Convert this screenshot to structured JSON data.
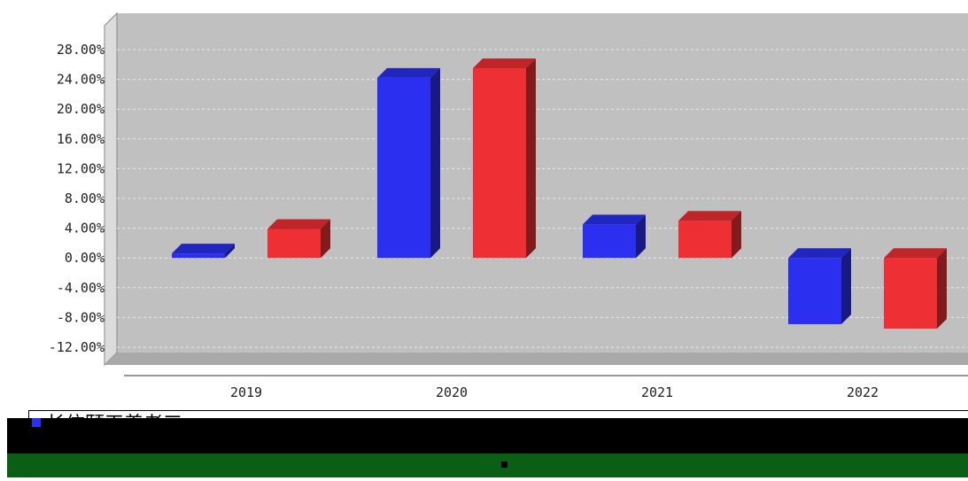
{
  "chart_data": {
    "type": "bar",
    "categories": [
      "2019",
      "2020",
      "2021",
      "2022"
    ],
    "series": [
      {
        "name": "长信颐天养老三",
        "color": "#2b2ff0",
        "values": [
          0.6,
          24.2,
          4.5,
          -8.9
        ]
      },
      {
        "values": [
          3.9,
          25.5,
          5.0,
          -9.5
        ],
        "color": "#ee2f33"
      }
    ],
    "y_ticks": [
      "28.00%",
      "24.00%",
      "20.00%",
      "16.00%",
      "12.00%",
      "8.00%",
      "4.00%",
      "0.00%",
      "-4.00%",
      "-8.00%",
      "-12.00%"
    ],
    "ylim": [
      -12,
      28
    ],
    "grid": true,
    "legend_position": "bottom",
    "title": "",
    "xlabel": "",
    "ylabel": ""
  },
  "legend": {
    "label": "长信颐天养老三"
  },
  "colors": {
    "plot_bg": "#c0c0c0",
    "floor": "#a9a9a9",
    "wall_side": "#dcdcdc",
    "noise_black": "#000000",
    "noise_green": "#0b5f14"
  }
}
